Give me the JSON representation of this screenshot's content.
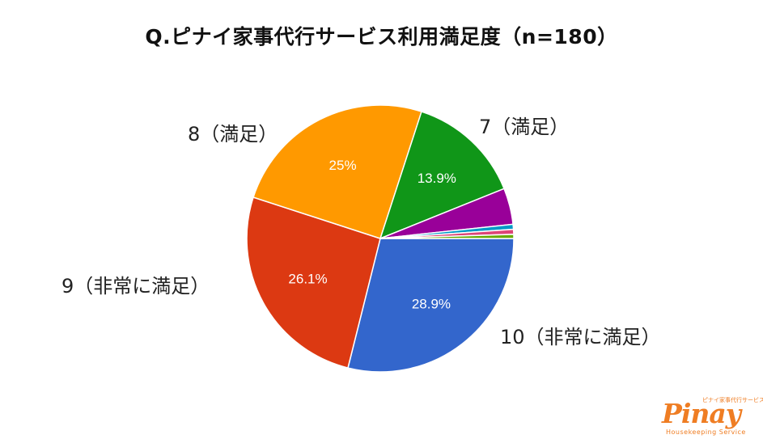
{
  "title": "Q.ピナイ家事代行サービス利用満足度（n=180）",
  "chart_data": {
    "type": "pie",
    "title": "Q.ピナイ家事代行サービス利用満足度（n=180）",
    "slices": [
      {
        "label": "10（非常に満足）",
        "value": 28.9,
        "pct_label": "28.9%",
        "color": "#3366cc"
      },
      {
        "label": "9（非常に満足）",
        "value": 26.1,
        "pct_label": "26.1%",
        "color": "#dc3912"
      },
      {
        "label": "8（満足）",
        "value": 25.0,
        "pct_label": "25%",
        "color": "#ff9900"
      },
      {
        "label": "7（満足）",
        "value": 13.9,
        "pct_label": "13.9%",
        "color": "#109618"
      },
      {
        "label": "",
        "value": 4.4,
        "pct_label": "",
        "color": "#990099"
      },
      {
        "label": "",
        "value": 0.6,
        "pct_label": "",
        "color": "#0099c6"
      },
      {
        "label": "",
        "value": 0.6,
        "pct_label": "",
        "color": "#dd4477"
      },
      {
        "label": "",
        "value": 0.5,
        "pct_label": "",
        "color": "#66aa00"
      }
    ]
  },
  "logo": {
    "word": "Pinay",
    "tagline": "ピナイ家事代行サービス",
    "subtitle": "Housekeeping Service"
  }
}
